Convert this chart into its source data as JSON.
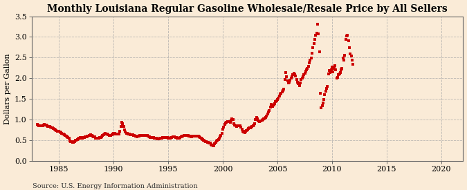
{
  "title": "Monthly Louisiana Regular Gasoline Wholesale/Resale Price by All Sellers",
  "ylabel": "Dollars per Gallon",
  "source": "Source: U.S. Energy Information Administration",
  "background_color": "#faebd7",
  "line_color": "#cc0000",
  "marker": "s",
  "markersize": 2.8,
  "xlim": [
    1982.5,
    2022
  ],
  "ylim": [
    0.0,
    3.5
  ],
  "yticks": [
    0.0,
    0.5,
    1.0,
    1.5,
    2.0,
    2.5,
    3.0,
    3.5
  ],
  "xticks": [
    1985,
    1990,
    1995,
    2000,
    2005,
    2010,
    2015,
    2020
  ],
  "grid_color": "#aaaaaa",
  "title_fontsize": 10,
  "label_fontsize": 8,
  "tick_fontsize": 8,
  "prices": [
    [
      1983.0,
      0.886
    ],
    [
      1983.083,
      0.88
    ],
    [
      1983.167,
      0.862
    ],
    [
      1983.25,
      0.851
    ],
    [
      1983.333,
      0.849
    ],
    [
      1983.417,
      0.853
    ],
    [
      1983.5,
      0.857
    ],
    [
      1983.583,
      0.874
    ],
    [
      1983.667,
      0.883
    ],
    [
      1983.75,
      0.876
    ],
    [
      1983.833,
      0.875
    ],
    [
      1983.917,
      0.858
    ],
    [
      1984.0,
      0.841
    ],
    [
      1984.083,
      0.834
    ],
    [
      1984.167,
      0.832
    ],
    [
      1984.25,
      0.82
    ],
    [
      1984.333,
      0.802
    ],
    [
      1984.417,
      0.798
    ],
    [
      1984.5,
      0.787
    ],
    [
      1984.583,
      0.773
    ],
    [
      1984.667,
      0.761
    ],
    [
      1984.75,
      0.738
    ],
    [
      1984.833,
      0.727
    ],
    [
      1984.917,
      0.72
    ],
    [
      1985.0,
      0.714
    ],
    [
      1985.083,
      0.699
    ],
    [
      1985.167,
      0.682
    ],
    [
      1985.25,
      0.672
    ],
    [
      1985.333,
      0.655
    ],
    [
      1985.417,
      0.648
    ],
    [
      1985.5,
      0.633
    ],
    [
      1985.583,
      0.622
    ],
    [
      1985.667,
      0.608
    ],
    [
      1985.75,
      0.594
    ],
    [
      1985.833,
      0.577
    ],
    [
      1985.917,
      0.561
    ],
    [
      1986.0,
      0.485
    ],
    [
      1986.083,
      0.478
    ],
    [
      1986.167,
      0.469
    ],
    [
      1986.25,
      0.457
    ],
    [
      1986.333,
      0.449
    ],
    [
      1986.417,
      0.468
    ],
    [
      1986.5,
      0.497
    ],
    [
      1986.583,
      0.509
    ],
    [
      1986.667,
      0.521
    ],
    [
      1986.75,
      0.535
    ],
    [
      1986.833,
      0.558
    ],
    [
      1986.917,
      0.568
    ],
    [
      1987.0,
      0.576
    ],
    [
      1987.083,
      0.563
    ],
    [
      1987.167,
      0.556
    ],
    [
      1987.25,
      0.565
    ],
    [
      1987.333,
      0.578
    ],
    [
      1987.417,
      0.585
    ],
    [
      1987.5,
      0.591
    ],
    [
      1987.583,
      0.598
    ],
    [
      1987.667,
      0.607
    ],
    [
      1987.75,
      0.621
    ],
    [
      1987.833,
      0.628
    ],
    [
      1987.917,
      0.634
    ],
    [
      1988.0,
      0.625
    ],
    [
      1988.083,
      0.609
    ],
    [
      1988.167,
      0.594
    ],
    [
      1988.25,
      0.581
    ],
    [
      1988.333,
      0.563
    ],
    [
      1988.417,
      0.551
    ],
    [
      1988.5,
      0.548
    ],
    [
      1988.583,
      0.558
    ],
    [
      1988.667,
      0.563
    ],
    [
      1988.75,
      0.572
    ],
    [
      1988.833,
      0.579
    ],
    [
      1988.917,
      0.583
    ],
    [
      1989.0,
      0.621
    ],
    [
      1989.083,
      0.638
    ],
    [
      1989.167,
      0.655
    ],
    [
      1989.25,
      0.671
    ],
    [
      1989.333,
      0.663
    ],
    [
      1989.417,
      0.651
    ],
    [
      1989.5,
      0.637
    ],
    [
      1989.583,
      0.628
    ],
    [
      1989.667,
      0.618
    ],
    [
      1989.75,
      0.617
    ],
    [
      1989.833,
      0.634
    ],
    [
      1989.917,
      0.652
    ],
    [
      1990.0,
      0.673
    ],
    [
      1990.083,
      0.669
    ],
    [
      1990.167,
      0.661
    ],
    [
      1990.25,
      0.657
    ],
    [
      1990.333,
      0.653
    ],
    [
      1990.417,
      0.651
    ],
    [
      1990.5,
      0.658
    ],
    [
      1990.583,
      0.723
    ],
    [
      1990.667,
      0.842
    ],
    [
      1990.75,
      0.936
    ],
    [
      1990.833,
      0.911
    ],
    [
      1990.917,
      0.835
    ],
    [
      1991.0,
      0.761
    ],
    [
      1991.083,
      0.698
    ],
    [
      1991.167,
      0.673
    ],
    [
      1991.25,
      0.664
    ],
    [
      1991.333,
      0.657
    ],
    [
      1991.417,
      0.647
    ],
    [
      1991.5,
      0.637
    ],
    [
      1991.583,
      0.634
    ],
    [
      1991.667,
      0.638
    ],
    [
      1991.75,
      0.636
    ],
    [
      1991.833,
      0.622
    ],
    [
      1991.917,
      0.614
    ],
    [
      1992.0,
      0.607
    ],
    [
      1992.083,
      0.598
    ],
    [
      1992.167,
      0.594
    ],
    [
      1992.25,
      0.598
    ],
    [
      1992.333,
      0.603
    ],
    [
      1992.417,
      0.614
    ],
    [
      1992.5,
      0.617
    ],
    [
      1992.583,
      0.618
    ],
    [
      1992.667,
      0.614
    ],
    [
      1992.75,
      0.617
    ],
    [
      1992.833,
      0.621
    ],
    [
      1992.917,
      0.624
    ],
    [
      1993.0,
      0.619
    ],
    [
      1993.083,
      0.614
    ],
    [
      1993.167,
      0.601
    ],
    [
      1993.25,
      0.587
    ],
    [
      1993.333,
      0.577
    ],
    [
      1993.417,
      0.576
    ],
    [
      1993.5,
      0.573
    ],
    [
      1993.583,
      0.568
    ],
    [
      1993.667,
      0.564
    ],
    [
      1993.75,
      0.562
    ],
    [
      1993.833,
      0.559
    ],
    [
      1993.917,
      0.554
    ],
    [
      1994.0,
      0.543
    ],
    [
      1994.083,
      0.537
    ],
    [
      1994.167,
      0.541
    ],
    [
      1994.25,
      0.549
    ],
    [
      1994.333,
      0.556
    ],
    [
      1994.417,
      0.561
    ],
    [
      1994.5,
      0.568
    ],
    [
      1994.583,
      0.576
    ],
    [
      1994.667,
      0.572
    ],
    [
      1994.75,
      0.571
    ],
    [
      1994.833,
      0.569
    ],
    [
      1994.917,
      0.564
    ],
    [
      1995.0,
      0.562
    ],
    [
      1995.083,
      0.558
    ],
    [
      1995.167,
      0.563
    ],
    [
      1995.25,
      0.569
    ],
    [
      1995.333,
      0.573
    ],
    [
      1995.417,
      0.582
    ],
    [
      1995.5,
      0.585
    ],
    [
      1995.583,
      0.587
    ],
    [
      1995.667,
      0.578
    ],
    [
      1995.75,
      0.569
    ],
    [
      1995.833,
      0.563
    ],
    [
      1995.917,
      0.556
    ],
    [
      1996.0,
      0.563
    ],
    [
      1996.083,
      0.577
    ],
    [
      1996.167,
      0.596
    ],
    [
      1996.25,
      0.603
    ],
    [
      1996.333,
      0.607
    ],
    [
      1996.417,
      0.614
    ],
    [
      1996.5,
      0.618
    ],
    [
      1996.583,
      0.622
    ],
    [
      1996.667,
      0.619
    ],
    [
      1996.75,
      0.618
    ],
    [
      1996.833,
      0.614
    ],
    [
      1996.917,
      0.608
    ],
    [
      1997.0,
      0.601
    ],
    [
      1997.083,
      0.594
    ],
    [
      1997.167,
      0.591
    ],
    [
      1997.25,
      0.598
    ],
    [
      1997.333,
      0.601
    ],
    [
      1997.417,
      0.603
    ],
    [
      1997.5,
      0.608
    ],
    [
      1997.583,
      0.611
    ],
    [
      1997.667,
      0.607
    ],
    [
      1997.75,
      0.597
    ],
    [
      1997.833,
      0.588
    ],
    [
      1997.917,
      0.573
    ],
    [
      1998.0,
      0.554
    ],
    [
      1998.083,
      0.537
    ],
    [
      1998.167,
      0.514
    ],
    [
      1998.25,
      0.497
    ],
    [
      1998.333,
      0.481
    ],
    [
      1998.417,
      0.473
    ],
    [
      1998.5,
      0.469
    ],
    [
      1998.583,
      0.458
    ],
    [
      1998.667,
      0.449
    ],
    [
      1998.75,
      0.441
    ],
    [
      1998.833,
      0.432
    ],
    [
      1998.917,
      0.406
    ],
    [
      1999.0,
      0.382
    ],
    [
      1999.083,
      0.374
    ],
    [
      1999.167,
      0.378
    ],
    [
      1999.25,
      0.417
    ],
    [
      1999.333,
      0.448
    ],
    [
      1999.417,
      0.491
    ],
    [
      1999.5,
      0.507
    ],
    [
      1999.583,
      0.527
    ],
    [
      1999.667,
      0.554
    ],
    [
      1999.75,
      0.586
    ],
    [
      1999.833,
      0.627
    ],
    [
      1999.917,
      0.664
    ],
    [
      2000.0,
      0.771
    ],
    [
      2000.083,
      0.826
    ],
    [
      2000.167,
      0.895
    ],
    [
      2000.25,
      0.922
    ],
    [
      2000.333,
      0.942
    ],
    [
      2000.417,
      0.954
    ],
    [
      2000.5,
      0.961
    ],
    [
      2000.583,
      0.948
    ],
    [
      2000.667,
      0.942
    ],
    [
      2000.75,
      0.981
    ],
    [
      2000.833,
      1.016
    ],
    [
      2000.917,
      0.998
    ],
    [
      2001.0,
      0.912
    ],
    [
      2001.083,
      0.872
    ],
    [
      2001.167,
      0.847
    ],
    [
      2001.25,
      0.838
    ],
    [
      2001.333,
      0.849
    ],
    [
      2001.417,
      0.858
    ],
    [
      2001.5,
      0.862
    ],
    [
      2001.583,
      0.847
    ],
    [
      2001.667,
      0.822
    ],
    [
      2001.75,
      0.764
    ],
    [
      2001.833,
      0.721
    ],
    [
      2001.917,
      0.697
    ],
    [
      2002.0,
      0.695
    ],
    [
      2002.083,
      0.714
    ],
    [
      2002.167,
      0.738
    ],
    [
      2002.25,
      0.762
    ],
    [
      2002.333,
      0.784
    ],
    [
      2002.417,
      0.801
    ],
    [
      2002.5,
      0.808
    ],
    [
      2002.583,
      0.821
    ],
    [
      2002.667,
      0.833
    ],
    [
      2002.75,
      0.854
    ],
    [
      2002.833,
      0.873
    ],
    [
      2002.917,
      0.901
    ],
    [
      2003.0,
      1.008
    ],
    [
      2003.083,
      1.054
    ],
    [
      2003.167,
      1.028
    ],
    [
      2003.25,
      0.969
    ],
    [
      2003.333,
      0.961
    ],
    [
      2003.417,
      0.964
    ],
    [
      2003.5,
      0.971
    ],
    [
      2003.583,
      0.989
    ],
    [
      2003.667,
      1.008
    ],
    [
      2003.75,
      1.027
    ],
    [
      2003.833,
      1.038
    ],
    [
      2003.917,
      1.051
    ],
    [
      2004.0,
      1.091
    ],
    [
      2004.083,
      1.132
    ],
    [
      2004.167,
      1.195
    ],
    [
      2004.25,
      1.224
    ],
    [
      2004.333,
      1.298
    ],
    [
      2004.417,
      1.375
    ],
    [
      2004.5,
      1.354
    ],
    [
      2004.583,
      1.329
    ],
    [
      2004.667,
      1.348
    ],
    [
      2004.75,
      1.387
    ],
    [
      2004.833,
      1.432
    ],
    [
      2004.917,
      1.461
    ],
    [
      2005.0,
      1.492
    ],
    [
      2005.083,
      1.524
    ],
    [
      2005.167,
      1.571
    ],
    [
      2005.25,
      1.618
    ],
    [
      2005.333,
      1.645
    ],
    [
      2005.417,
      1.679
    ],
    [
      2005.5,
      1.701
    ],
    [
      2005.583,
      1.738
    ],
    [
      2005.667,
      1.978
    ],
    [
      2005.75,
      2.136
    ],
    [
      2005.833,
      2.044
    ],
    [
      2005.917,
      1.946
    ],
    [
      2006.0,
      1.894
    ],
    [
      2006.083,
      1.912
    ],
    [
      2006.167,
      1.957
    ],
    [
      2006.25,
      2.009
    ],
    [
      2006.333,
      2.048
    ],
    [
      2006.417,
      2.087
    ],
    [
      2006.5,
      2.131
    ],
    [
      2006.583,
      2.098
    ],
    [
      2006.667,
      2.051
    ],
    [
      2006.75,
      1.971
    ],
    [
      2006.833,
      1.908
    ],
    [
      2006.917,
      1.874
    ],
    [
      2007.0,
      1.821
    ],
    [
      2007.083,
      1.891
    ],
    [
      2007.167,
      1.968
    ],
    [
      2007.25,
      2.014
    ],
    [
      2007.333,
      2.048
    ],
    [
      2007.417,
      2.087
    ],
    [
      2007.5,
      2.131
    ],
    [
      2007.583,
      2.168
    ],
    [
      2007.667,
      2.201
    ],
    [
      2007.75,
      2.241
    ],
    [
      2007.833,
      2.287
    ],
    [
      2007.917,
      2.368
    ],
    [
      2008.0,
      2.434
    ],
    [
      2008.083,
      2.497
    ],
    [
      2008.167,
      2.601
    ],
    [
      2008.25,
      2.738
    ],
    [
      2008.333,
      2.841
    ],
    [
      2008.417,
      2.934
    ],
    [
      2008.5,
      3.041
    ],
    [
      2008.583,
      3.089
    ],
    [
      2008.667,
      3.301
    ],
    [
      2008.75,
      3.078
    ],
    [
      2008.833,
      2.641
    ],
    [
      2008.917,
      1.634
    ],
    [
      2009.0,
      1.296
    ],
    [
      2009.083,
      1.341
    ],
    [
      2009.167,
      1.407
    ],
    [
      2009.25,
      1.487
    ],
    [
      2009.333,
      1.603
    ],
    [
      2009.417,
      1.694
    ],
    [
      2009.5,
      1.751
    ],
    [
      2009.583,
      1.808
    ],
    [
      2009.667,
      2.101
    ],
    [
      2009.75,
      2.194
    ],
    [
      2009.833,
      2.141
    ],
    [
      2009.917,
      2.208
    ],
    [
      2010.0,
      2.268
    ],
    [
      2010.083,
      2.155
    ],
    [
      2010.167,
      2.234
    ],
    [
      2010.25,
      2.308
    ],
    [
      2010.333,
      2.214
    ],
    [
      2010.417,
      2.014
    ],
    [
      2010.5,
      2.021
    ],
    [
      2010.583,
      2.087
    ],
    [
      2010.667,
      2.104
    ],
    [
      2010.75,
      2.148
    ],
    [
      2010.833,
      2.201
    ],
    [
      2010.917,
      2.241
    ],
    [
      2011.0,
      2.484
    ],
    [
      2011.083,
      2.441
    ],
    [
      2011.167,
      2.558
    ],
    [
      2011.25,
      2.934
    ],
    [
      2011.333,
      3.021
    ],
    [
      2011.417,
      3.048
    ],
    [
      2011.5,
      2.901
    ],
    [
      2011.583,
      2.734
    ],
    [
      2011.667,
      2.594
    ],
    [
      2011.75,
      2.541
    ],
    [
      2011.833,
      2.448
    ],
    [
      2011.917,
      2.348
    ]
  ]
}
